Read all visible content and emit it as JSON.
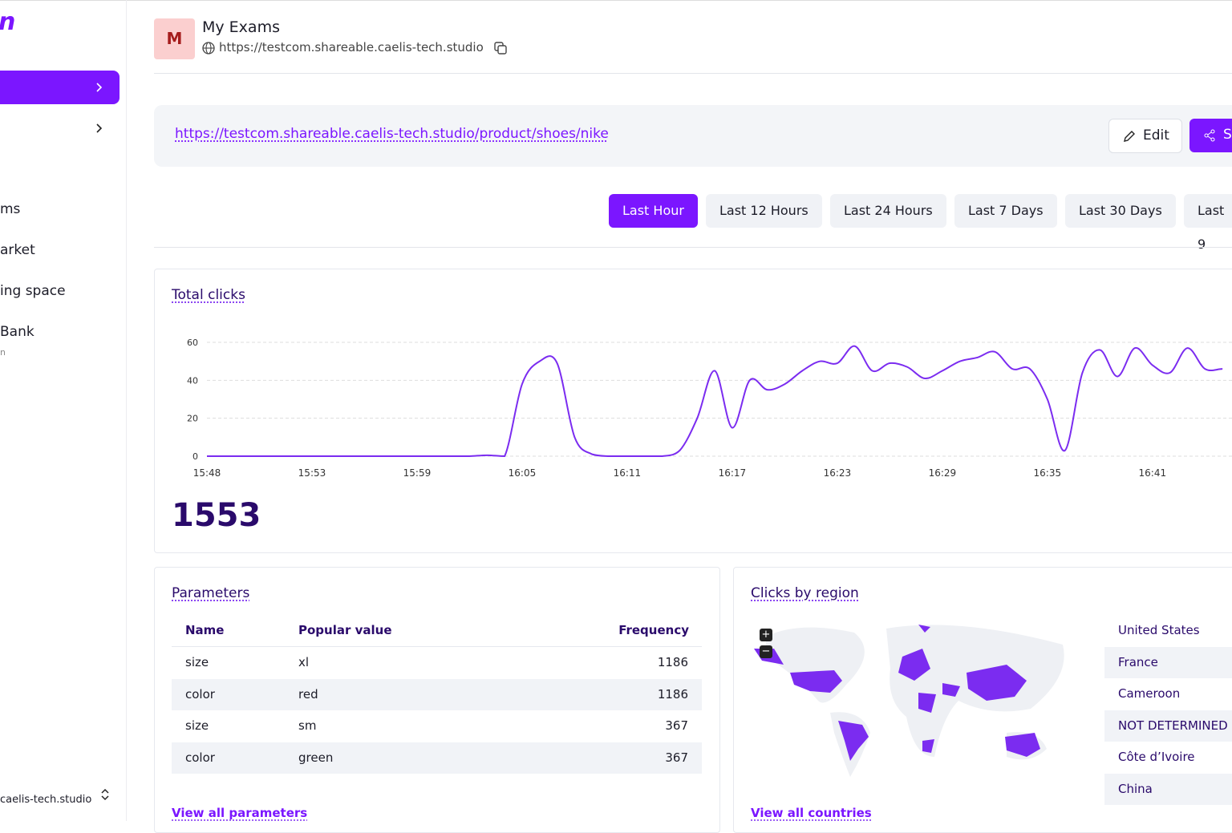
{
  "sidebar": {
    "logo": "n",
    "nav": [
      "ms",
      "arket",
      "ing space",
      "Bank"
    ],
    "nav_sub": "n",
    "footer": "caelis-tech.studio"
  },
  "header": {
    "avatar": "M",
    "title": "My Exams",
    "url": "https://testcom.shareable.caelis-tech.studio"
  },
  "link_bar": {
    "link": "https://testcom.shareable.caelis-tech.studio/product/shoes/nike",
    "edit": "Edit",
    "share": "S"
  },
  "time_ranges": {
    "options": [
      "Last Hour",
      "Last 12 Hours",
      "Last 24 Hours",
      "Last 7 Days",
      "Last 30 Days",
      "Last 9"
    ],
    "active": 0
  },
  "chart_data": {
    "type": "line",
    "title": "Total clicks",
    "total": 1553,
    "color": "#7b2cf0",
    "categories": [
      "15:48",
      null,
      null,
      null,
      null,
      null,
      "15:53",
      null,
      null,
      null,
      null,
      null,
      "15:59",
      null,
      null,
      null,
      null,
      null,
      "16:05",
      null,
      null,
      null,
      null,
      null,
      "16:11",
      null,
      null,
      null,
      null,
      null,
      "16:17",
      null,
      null,
      null,
      null,
      null,
      "16:23",
      null,
      null,
      null,
      null,
      null,
      "16:29",
      null,
      null,
      null,
      null,
      null,
      "16:35",
      null,
      null,
      null,
      null,
      null,
      "16:41",
      null,
      null,
      null,
      null
    ],
    "values": [
      0,
      0,
      0,
      0,
      0,
      0,
      0,
      0,
      0,
      0,
      0,
      0,
      0,
      0,
      0,
      0,
      0.5,
      0,
      38,
      50,
      49,
      10,
      1,
      0,
      0,
      0,
      0,
      3,
      20,
      45,
      15,
      40,
      35,
      38,
      45,
      50,
      49,
      58,
      45,
      49,
      47,
      41,
      45,
      50,
      52,
      55,
      46,
      46,
      30,
      3,
      44,
      56,
      42,
      57,
      48,
      44,
      57,
      46,
      46
    ],
    "ylim": [
      0,
      60
    ],
    "yticks": [
      0,
      20,
      40,
      60
    ],
    "grid": true
  },
  "parameters": {
    "title": "Parameters",
    "columns": [
      "Name",
      "Popular value",
      "Frequency"
    ],
    "rows": [
      [
        "size",
        "xl",
        "1186"
      ],
      [
        "color",
        "red",
        "1186"
      ],
      [
        "size",
        "sm",
        "367"
      ],
      [
        "color",
        "green",
        "367"
      ]
    ],
    "link": "View all parameters"
  },
  "regions": {
    "title": "Clicks by region",
    "countries": [
      "United States",
      "France",
      "Cameroon",
      "NOT DETERMINED",
      "Côte d’Ivoire",
      "China"
    ],
    "link": "View all countries"
  }
}
